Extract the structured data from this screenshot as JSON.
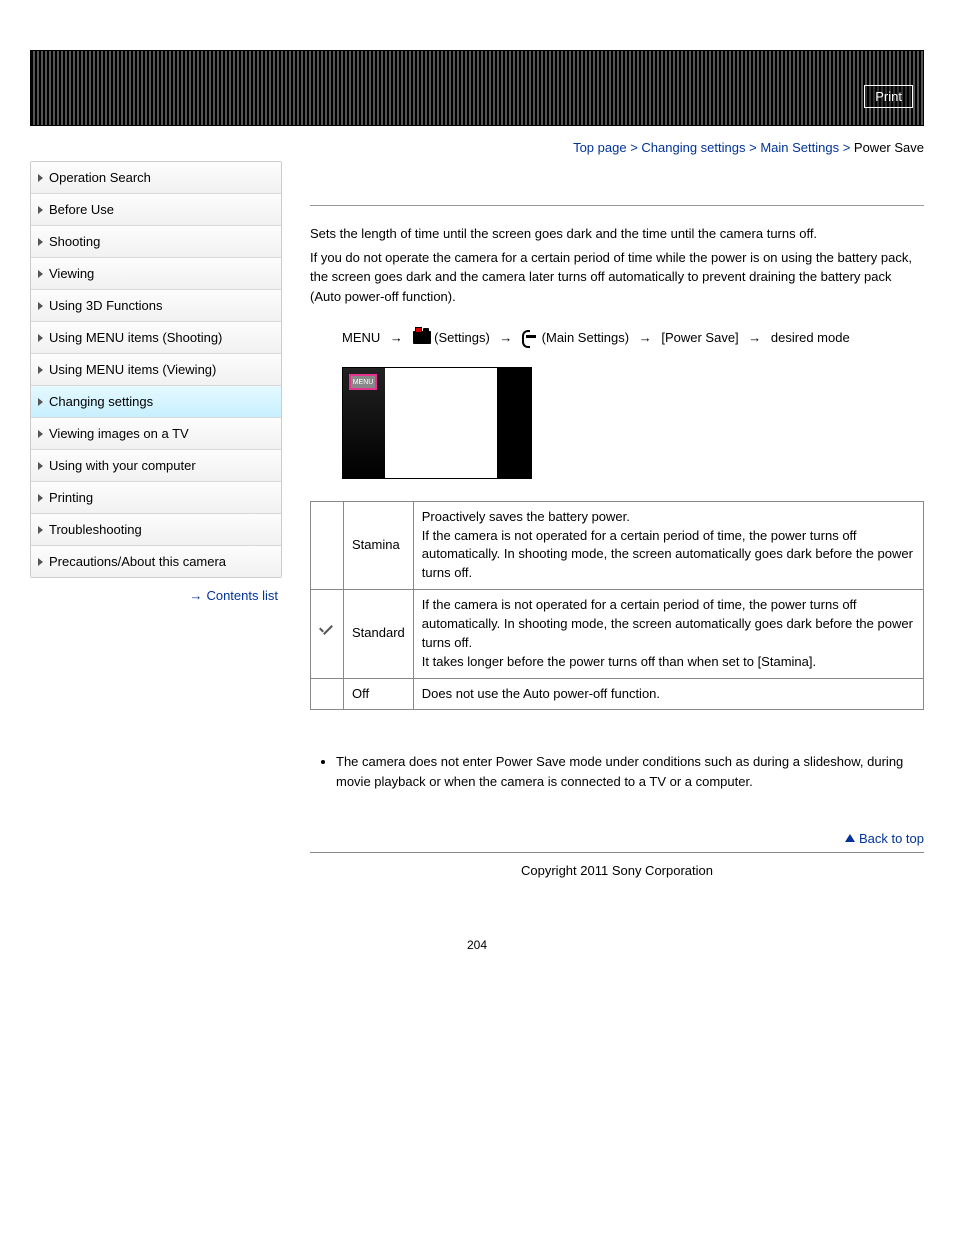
{
  "header": {
    "print": "Print"
  },
  "breadcrumb": {
    "items": [
      "Top page",
      "Changing settings",
      "Main Settings"
    ],
    "current": "Power Save",
    "sep": " > "
  },
  "sidebar": {
    "items": [
      "Operation Search",
      "Before Use",
      "Shooting",
      "Viewing",
      "Using 3D Functions",
      "Using MENU items (Shooting)",
      "Using MENU items (Viewing)",
      "Changing settings",
      "Viewing images on a TV",
      "Using with your computer",
      "Printing",
      "Troubleshooting",
      "Precautions/About this camera"
    ],
    "active_index": 7,
    "contents_link": "Contents list"
  },
  "main": {
    "intro1": "Sets the length of time until the screen goes dark and the time until the camera turns off.",
    "intro2": "If you do not operate the camera for a certain period of time while the power is on using the battery pack, the screen goes dark and the camera later turns off automatically to prevent draining the battery pack (Auto power-off function).",
    "flow": {
      "menu": "MENU",
      "settings": "(Settings)",
      "main_settings": "(Main Settings)",
      "power_save": "[Power Save]",
      "desired": "desired mode"
    },
    "screenshot_menu_label": "MENU",
    "table": {
      "rows": [
        {
          "icon": "",
          "name": "Stamina",
          "desc": "Proactively saves the battery power.\nIf the camera is not operated for a certain period of time, the power turns off automatically. In shooting mode, the screen automatically goes dark before the power turns off."
        },
        {
          "icon": "check",
          "name": "Standard",
          "desc": "If the camera is not operated for a certain period of time, the power turns off automatically. In shooting mode, the screen automatically goes dark before the power turns off.\nIt takes longer before the power turns off than when set to [Stamina]."
        },
        {
          "icon": "",
          "name": "Off",
          "desc": "Does not use the Auto power-off function."
        }
      ]
    },
    "note": "The camera does not enter Power Save mode under conditions such as during a slideshow, during movie playback or when the camera is connected to a TV or a computer.",
    "back_to_top": "Back to top",
    "copyright": "Copyright 2011 Sony Corporation",
    "page_number": "204"
  },
  "colors": {
    "link": "#003399",
    "active_bg_top": "#e6f9ff",
    "active_bg_bot": "#c7efff",
    "menu_highlight": "#e6338f"
  }
}
